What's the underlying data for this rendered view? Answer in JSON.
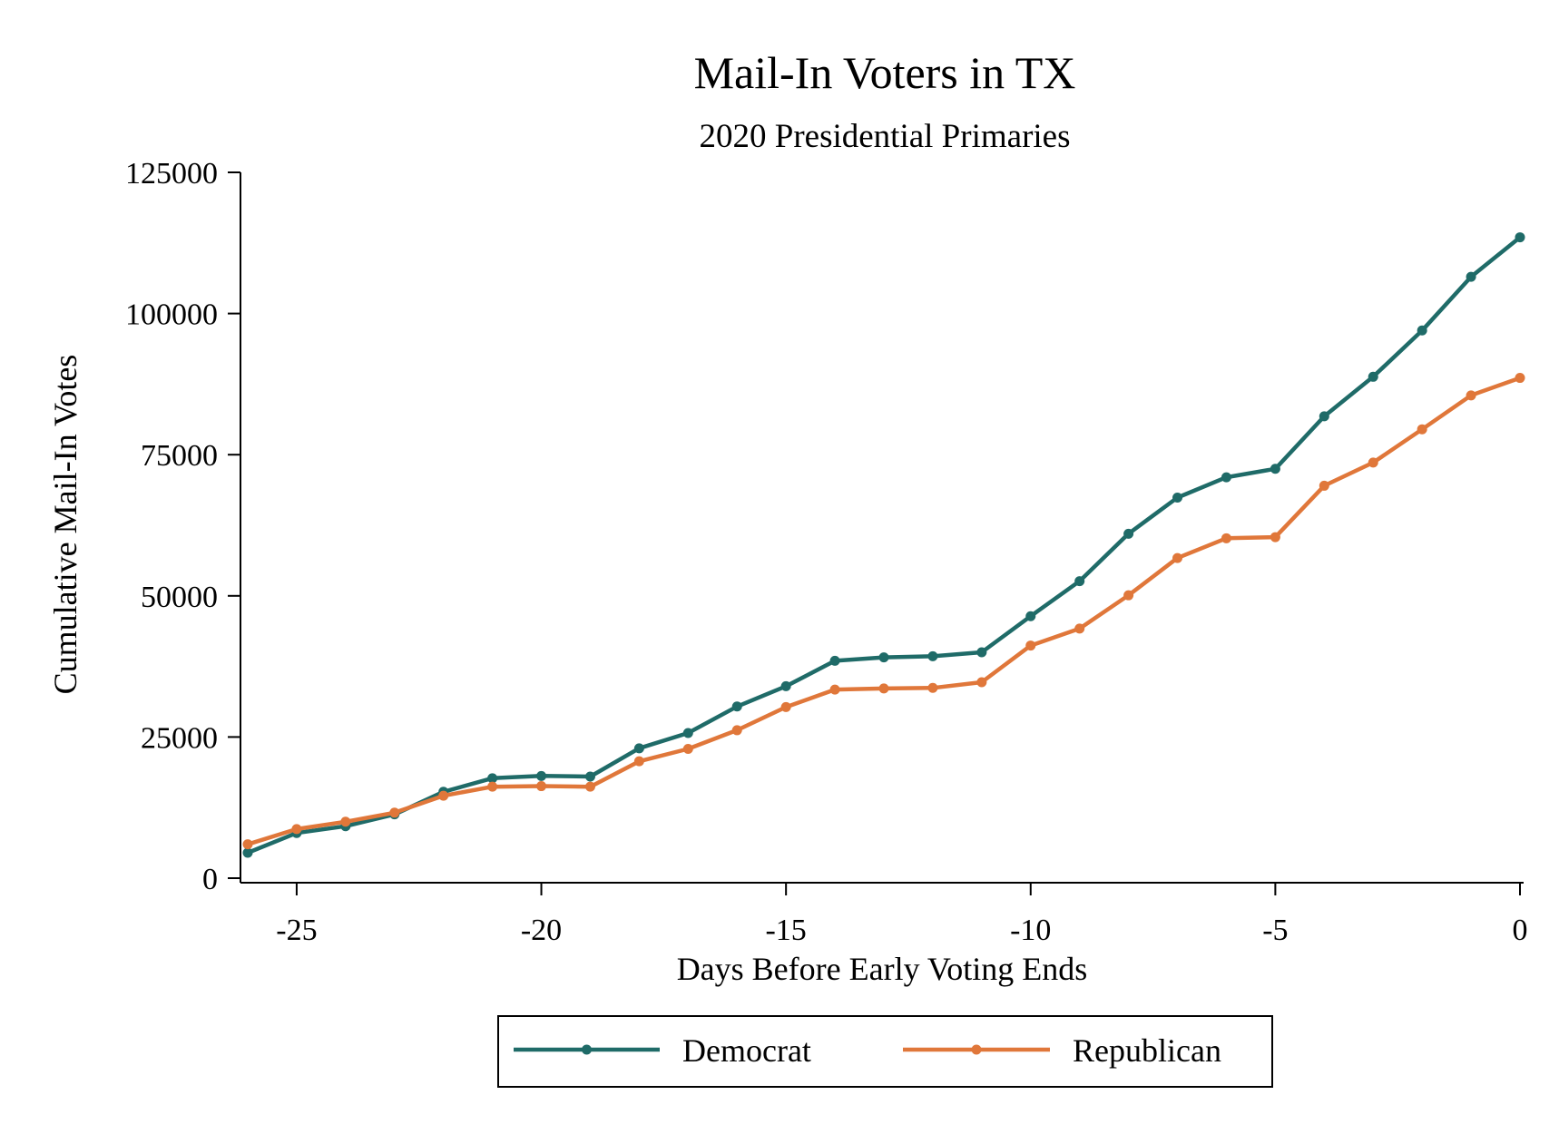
{
  "chart_data": {
    "type": "line",
    "title": "Mail-In Voters in TX",
    "subtitle": "2020 Presidential Primaries",
    "xlabel": "Days Before Early Voting Ends",
    "ylabel": "Cumulative Mail-In Votes",
    "xlim": [
      -26,
      0
    ],
    "ylim": [
      0,
      125000
    ],
    "xticks": [
      -25,
      -20,
      -15,
      -10,
      -5,
      0
    ],
    "xtick_labels": [
      "-25",
      "-20",
      "-15",
      "-10",
      "-5",
      "0"
    ],
    "yticks": [
      0,
      25000,
      50000,
      75000,
      100000,
      125000
    ],
    "ytick_labels": [
      "0",
      "25000",
      "50000",
      "75000",
      "100000",
      "125000"
    ],
    "grid": false,
    "legend_position": "bottom",
    "x": [
      -26,
      -25,
      -24,
      -23,
      -22,
      -21,
      -20,
      -19,
      -18,
      -17,
      -16,
      -15,
      -14,
      -13,
      -12,
      -11,
      -10,
      -9,
      -8,
      -7,
      -6,
      -5,
      -4,
      -3,
      -2,
      -1,
      0
    ],
    "series": [
      {
        "name": "Democrat",
        "color": "#1f6b68",
        "values": [
          4500,
          8000,
          9200,
          11300,
          15300,
          17700,
          18100,
          18000,
          23000,
          25700,
          30400,
          34000,
          38500,
          39100,
          39300,
          40000,
          46400,
          52600,
          61000,
          67400,
          71000,
          72500,
          81800,
          88800,
          97000,
          106500,
          113500
        ]
      },
      {
        "name": "Republican",
        "color": "#e0773a",
        "values": [
          6000,
          8700,
          10000,
          11600,
          14600,
          16200,
          16300,
          16200,
          20700,
          22900,
          26200,
          30300,
          33400,
          33600,
          33700,
          34700,
          41200,
          44200,
          50100,
          56700,
          60200,
          60400,
          69500,
          73600,
          79500,
          85500,
          88600
        ]
      }
    ]
  }
}
